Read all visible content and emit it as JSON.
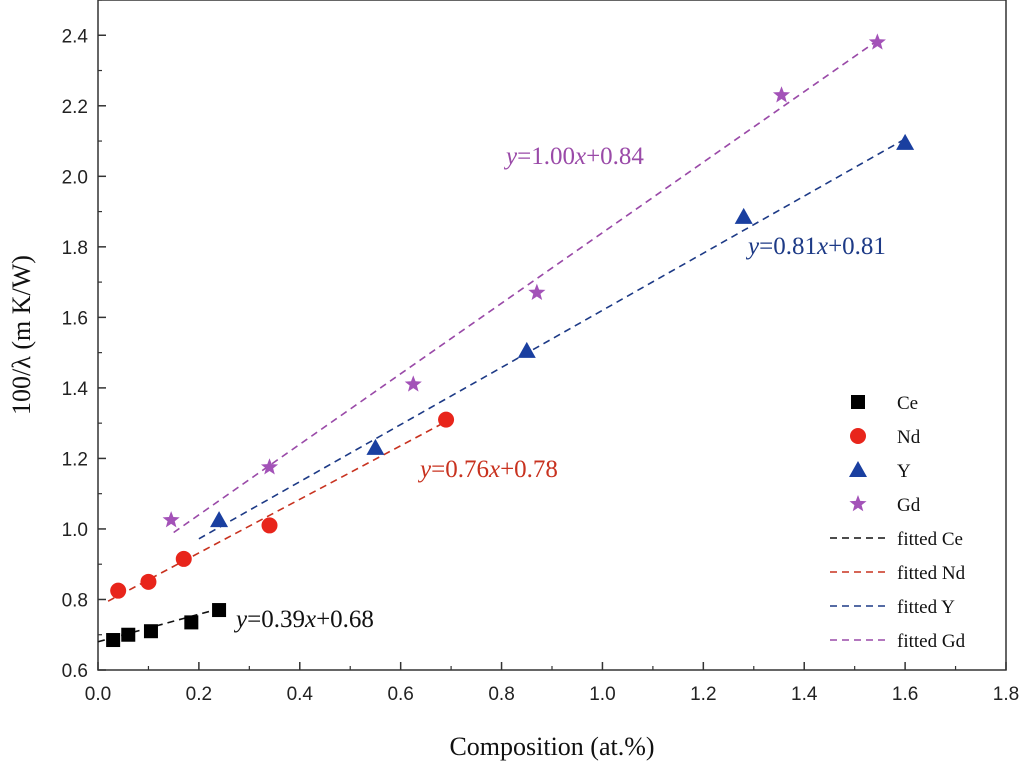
{
  "chart_data": {
    "type": "scatter",
    "xlabel": "Composition (at.%)",
    "ylabel": "100/λ  (m K/W)",
    "xlim": [
      0,
      1.8
    ],
    "ylim": [
      0.6,
      2.5
    ],
    "xticks": [
      "0.0",
      "0.2",
      "0.4",
      "0.6",
      "0.8",
      "1.0",
      "1.2",
      "1.4",
      "1.6",
      "1.8"
    ],
    "yticks": [
      "0.6",
      "0.8",
      "1.0",
      "1.2",
      "1.4",
      "1.6",
      "1.8",
      "2.0",
      "2.2",
      "2.4"
    ],
    "grid": false,
    "legend_position": "lower-right",
    "series": [
      {
        "name": "Ce",
        "marker": "square",
        "color": "#000000",
        "x": [
          0.03,
          0.06,
          0.105,
          0.185,
          0.24
        ],
        "y": [
          0.685,
          0.7,
          0.71,
          0.735,
          0.77
        ]
      },
      {
        "name": "Nd",
        "marker": "circle",
        "color": "#e8251b",
        "x": [
          0.04,
          0.1,
          0.17,
          0.34,
          0.69
        ],
        "y": [
          0.825,
          0.85,
          0.915,
          1.01,
          1.31
        ]
      },
      {
        "name": "Y",
        "marker": "triangle",
        "color": "#1a3fa0",
        "x": [
          0.24,
          0.55,
          0.85,
          1.28,
          1.6
        ],
        "y": [
          1.025,
          1.23,
          1.505,
          1.885,
          2.095
        ]
      },
      {
        "name": "Gd",
        "marker": "star",
        "color": "#a352b8",
        "x": [
          0.145,
          0.34,
          0.625,
          0.87,
          1.355,
          1.545
        ],
        "y": [
          1.025,
          1.175,
          1.41,
          1.67,
          2.23,
          2.38
        ]
      }
    ],
    "fits": [
      {
        "name": "fitted Ce",
        "color": "#111111",
        "slope": 0.39,
        "intercept": 0.68,
        "x_range": [
          0.0,
          0.25
        ],
        "equation": "0.39",
        "intercept_text": "0.68"
      },
      {
        "name": "fitted Nd",
        "color": "#c8321f",
        "slope": 0.76,
        "intercept": 0.78,
        "x_range": [
          0.02,
          0.69
        ],
        "equation": "0.76",
        "intercept_text": "0.78"
      },
      {
        "name": "fitted Y",
        "color": "#1d3a86",
        "slope": 0.81,
        "intercept": 0.81,
        "x_range": [
          0.2,
          1.6
        ],
        "equation": "0.81",
        "intercept_text": "0.81"
      },
      {
        "name": "fitted Gd",
        "color": "#9a4aa8",
        "slope": 1.0,
        "intercept": 0.84,
        "x_range": [
          0.15,
          1.55
        ],
        "equation": "1.00",
        "intercept_text": "0.84"
      }
    ]
  }
}
